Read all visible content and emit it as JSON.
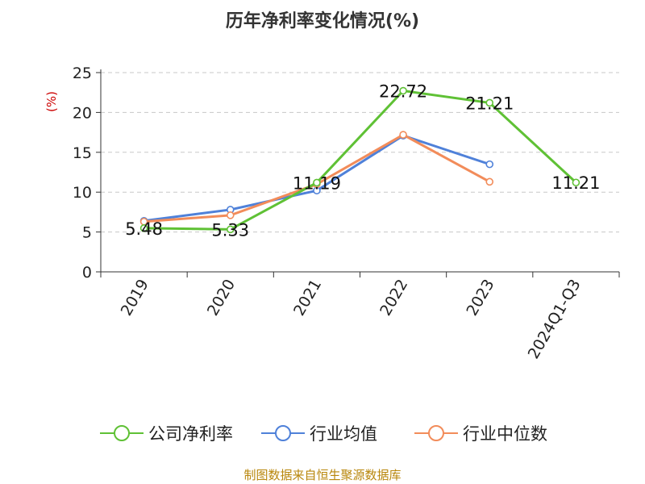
{
  "chart_data": {
    "type": "line",
    "title": "历年净利率变化情况(%)",
    "ylabel": "(%)",
    "xlabel": "",
    "categories": [
      "2019",
      "2020",
      "2021",
      "2022",
      "2023",
      "2024Q1-Q3"
    ],
    "y_ticks": [
      "0",
      "5",
      "10",
      "15",
      "20",
      "25"
    ],
    "ylim": [
      0,
      25
    ],
    "grid": "horizontal dashed",
    "legend_position": "bottom",
    "series": [
      {
        "name": "公司净利率",
        "color": "#5fc135",
        "values": [
          5.48,
          5.33,
          11.19,
          22.72,
          21.21,
          11.21
        ],
        "data_labels": [
          "5.48",
          "5.33",
          "11.19",
          "22.72",
          "21.21",
          "11.21"
        ]
      },
      {
        "name": "行业均值",
        "color": "#4f81d9",
        "values": [
          6.4,
          7.8,
          10.2,
          17.1,
          13.5,
          null
        ]
      },
      {
        "name": "行业中位数",
        "color": "#f28c5a",
        "values": [
          6.3,
          7.1,
          11.0,
          17.2,
          11.3,
          null
        ]
      }
    ]
  },
  "source_text": "制图数据来自恒生聚源数据库"
}
